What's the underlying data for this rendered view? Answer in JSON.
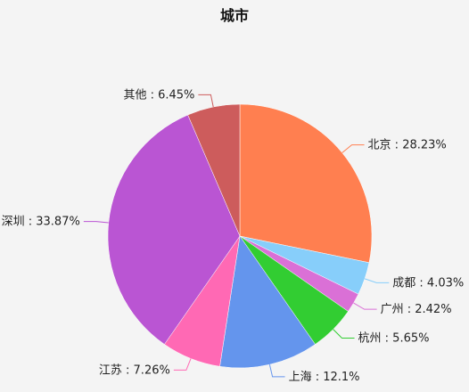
{
  "chart_data": {
    "type": "pie",
    "title": "城市",
    "label_separator": " : ",
    "start": "top, clockwise",
    "slices": [
      {
        "name": "北京",
        "percent_label": "28.23%",
        "value": 28.23,
        "color": "#ff7f50"
      },
      {
        "name": "成都",
        "percent_label": "4.03%",
        "value": 4.03,
        "color": "#87cefa"
      },
      {
        "name": "广州",
        "percent_label": "2.42%",
        "value": 2.42,
        "color": "#da70d6"
      },
      {
        "name": "杭州",
        "percent_label": "5.65%",
        "value": 5.65,
        "color": "#32cd32"
      },
      {
        "name": "上海",
        "percent_label": "12.1%",
        "value": 12.1,
        "color": "#6495ed"
      },
      {
        "name": "江苏",
        "percent_label": "7.26%",
        "value": 7.26,
        "color": "#ff69b4"
      },
      {
        "name": "深圳",
        "percent_label": "33.87%",
        "value": 33.87,
        "color": "#ba55d3"
      },
      {
        "name": "其他",
        "percent_label": "6.45%",
        "value": 6.45,
        "color": "#cd5c5c"
      }
    ]
  }
}
